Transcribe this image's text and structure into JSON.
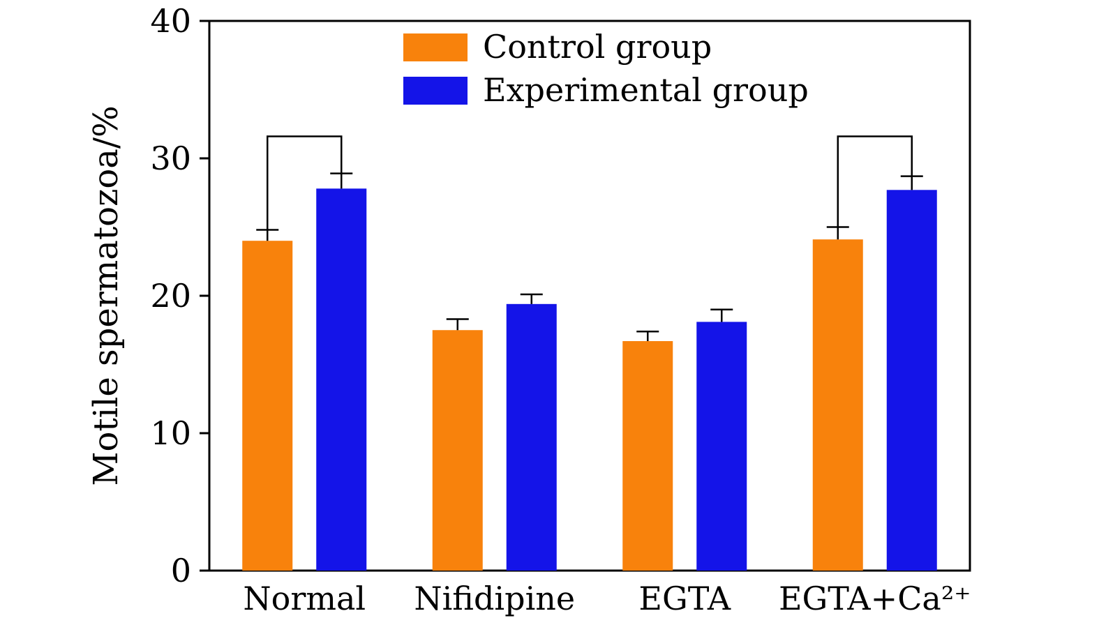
{
  "chart_data": {
    "type": "bar",
    "title": "",
    "xlabel": "",
    "ylabel": "Motile spermatozoa/%",
    "ylim": [
      0,
      40
    ],
    "yticks": [
      0,
      10,
      20,
      30,
      40
    ],
    "grid": false,
    "legend_position": "top-center",
    "categories": [
      "Normal",
      "Nifidipine",
      "EGTA",
      "EGTA+Ca²⁺"
    ],
    "series": [
      {
        "name": "Control group",
        "color": "#F8820C",
        "values": [
          24.0,
          17.5,
          16.7,
          24.1
        ],
        "errors_plus": [
          0.8,
          0.8,
          0.7,
          0.9
        ]
      },
      {
        "name": "Experimental group",
        "color": "#1414E8",
        "values": [
          27.8,
          19.4,
          18.1,
          27.7
        ],
        "errors_plus": [
          1.1,
          0.7,
          0.9,
          1.0
        ]
      }
    ],
    "significance_brackets": [
      {
        "category_index": 0,
        "bracket_y": 31.6
      },
      {
        "category_index": 3,
        "bracket_y": 31.6
      }
    ],
    "axis_color": "#000000",
    "error_bar_color": "#000000"
  }
}
